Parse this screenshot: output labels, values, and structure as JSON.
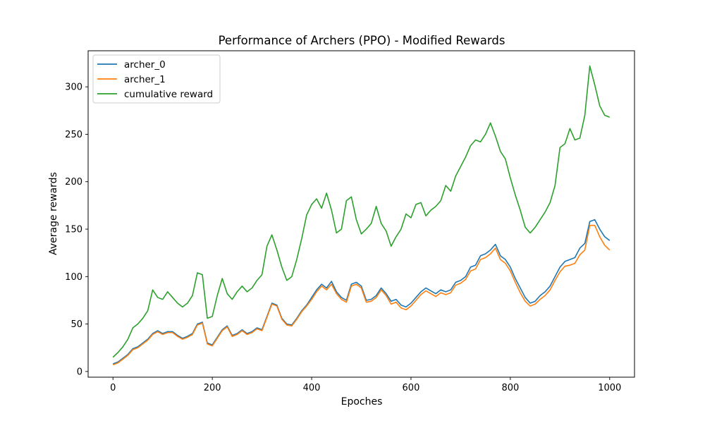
{
  "chart_data": {
    "type": "line",
    "title": "Performance of Archers (PPO) - Modified Rewards",
    "xlabel": "Epoches",
    "ylabel": "Average rewards",
    "xlim": [
      -50,
      1050
    ],
    "ylim": [
      -6,
      338
    ],
    "xticks": [
      0,
      200,
      400,
      600,
      800,
      1000
    ],
    "yticks": [
      0,
      50,
      100,
      150,
      200,
      250,
      300
    ],
    "grid": false,
    "legend_position": "top-left",
    "x": [
      0,
      10,
      20,
      30,
      40,
      50,
      60,
      70,
      80,
      90,
      100,
      110,
      120,
      130,
      140,
      150,
      160,
      170,
      180,
      190,
      200,
      210,
      220,
      230,
      240,
      250,
      260,
      270,
      280,
      290,
      300,
      310,
      320,
      330,
      340,
      350,
      360,
      370,
      380,
      390,
      400,
      410,
      420,
      430,
      440,
      450,
      460,
      470,
      480,
      490,
      500,
      510,
      520,
      530,
      540,
      550,
      560,
      570,
      580,
      590,
      600,
      610,
      620,
      630,
      640,
      650,
      660,
      670,
      680,
      690,
      700,
      710,
      720,
      730,
      740,
      750,
      760,
      770,
      780,
      790,
      800,
      810,
      820,
      830,
      840,
      850,
      860,
      870,
      880,
      890,
      900,
      910,
      920,
      930,
      940,
      950,
      960,
      970,
      980,
      990,
      1000
    ],
    "series": [
      {
        "name": "archer_0",
        "color": "#1f77b4",
        "values": [
          8,
          10,
          14,
          18,
          24,
          26,
          30,
          34,
          40,
          43,
          40,
          42,
          42,
          38,
          35,
          37,
          40,
          50,
          52,
          30,
          28,
          36,
          44,
          48,
          38,
          40,
          44,
          40,
          42,
          46,
          44,
          58,
          72,
          70,
          56,
          50,
          49,
          56,
          64,
          70,
          78,
          86,
          92,
          88,
          95,
          84,
          78,
          75,
          92,
          94,
          90,
          75,
          76,
          80,
          88,
          82,
          74,
          76,
          70,
          68,
          72,
          78,
          84,
          88,
          85,
          82,
          86,
          84,
          86,
          94,
          96,
          100,
          110,
          112,
          122,
          124,
          128,
          134,
          122,
          118,
          110,
          98,
          88,
          78,
          72,
          74,
          80,
          84,
          90,
          100,
          110,
          116,
          118,
          120,
          130,
          135,
          158,
          160,
          150,
          142,
          138
        ]
      },
      {
        "name": "archer_1",
        "color": "#ff7f0e",
        "values": [
          7,
          9,
          13,
          17,
          23,
          25,
          29,
          33,
          39,
          42,
          39,
          41,
          41,
          37,
          34,
          36,
          39,
          49,
          51,
          29,
          27,
          35,
          43,
          47,
          37,
          39,
          43,
          39,
          41,
          45,
          43,
          57,
          71,
          69,
          55,
          49,
          48,
          55,
          63,
          69,
          76,
          84,
          90,
          86,
          92,
          82,
          76,
          73,
          90,
          92,
          88,
          73,
          74,
          78,
          86,
          80,
          71,
          73,
          67,
          65,
          69,
          75,
          81,
          85,
          82,
          79,
          83,
          81,
          83,
          91,
          93,
          97,
          106,
          108,
          118,
          120,
          124,
          130,
          118,
          114,
          106,
          94,
          83,
          74,
          69,
          71,
          76,
          80,
          86,
          96,
          105,
          111,
          112,
          114,
          123,
          128,
          154,
          154,
          142,
          133,
          128
        ]
      },
      {
        "name": "cumulative reward",
        "color": "#2ca02c",
        "values": [
          15,
          20,
          26,
          34,
          46,
          50,
          56,
          64,
          86,
          78,
          76,
          84,
          78,
          72,
          68,
          72,
          80,
          104,
          102,
          56,
          58,
          80,
          98,
          82,
          76,
          84,
          90,
          84,
          88,
          96,
          102,
          132,
          144,
          128,
          110,
          96,
          100,
          118,
          140,
          165,
          176,
          182,
          172,
          188,
          170,
          146,
          150,
          180,
          184,
          160,
          145,
          150,
          156,
          174,
          156,
          148,
          132,
          142,
          150,
          166,
          162,
          176,
          178,
          164,
          170,
          174,
          180,
          196,
          190,
          206,
          216,
          226,
          238,
          244,
          242,
          250,
          262,
          248,
          232,
          224,
          204,
          186,
          170,
          152,
          146,
          152,
          160,
          168,
          178,
          196,
          236,
          240,
          256,
          244,
          246,
          270,
          322,
          302,
          280,
          270,
          268
        ]
      }
    ]
  }
}
